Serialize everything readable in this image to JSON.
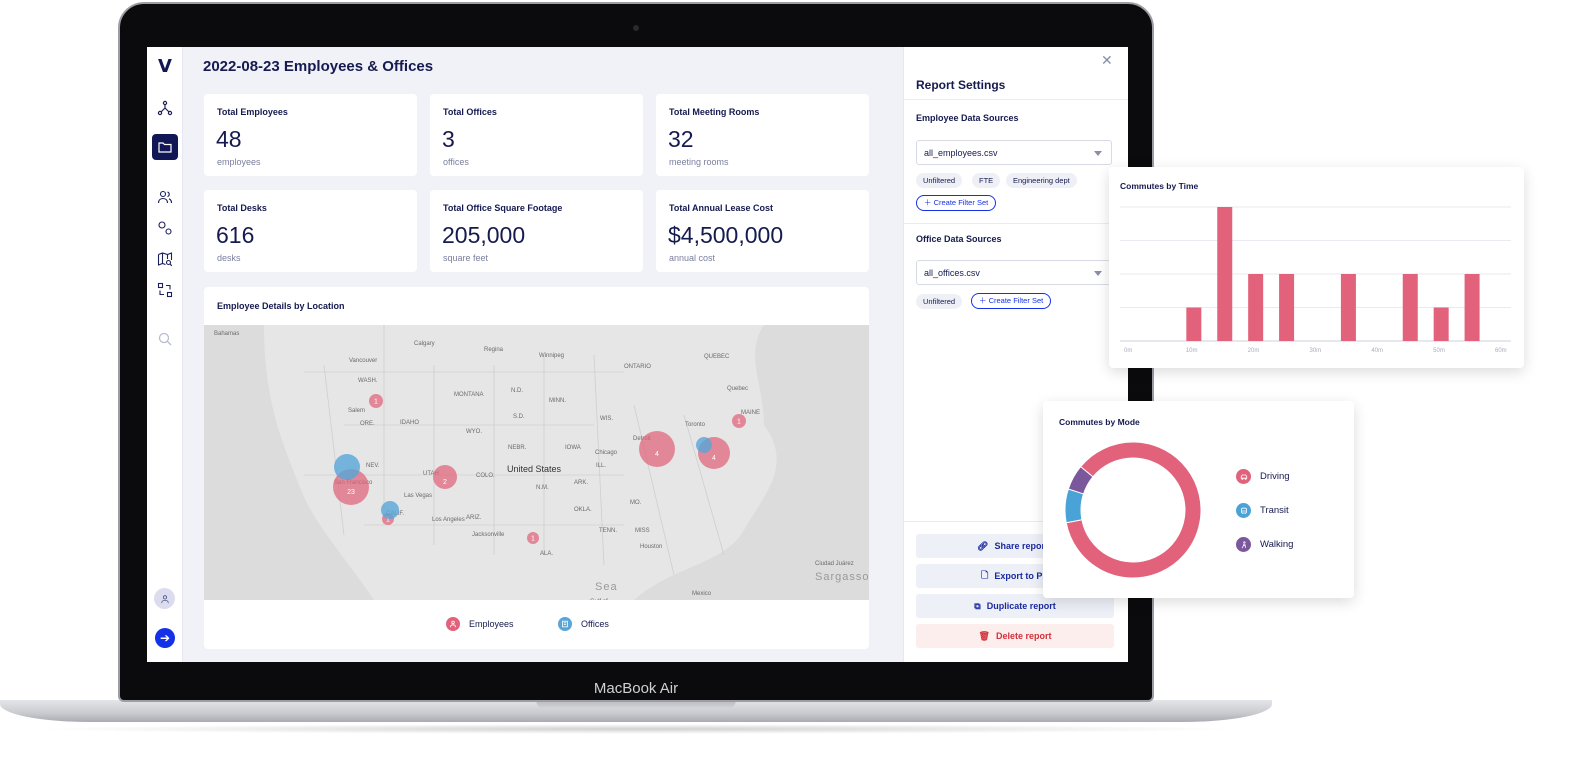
{
  "device_label": "MacBook Air",
  "page_title": "2022-08-23 Employees & Offices",
  "cards": [
    {
      "title": "Total Employees",
      "value": "48",
      "unit": "employees"
    },
    {
      "title": "Total Offices",
      "value": "3",
      "unit": "offices"
    },
    {
      "title": "Total Meeting Rooms",
      "value": "32",
      "unit": "meeting rooms"
    },
    {
      "title": "Total Desks",
      "value": "616",
      "unit": "desks"
    },
    {
      "title": "Total Office Square Footage",
      "value": "205,000",
      "unit": "square feet"
    },
    {
      "title": "Total Annual Lease Cost",
      "value": "$4,500,000",
      "unit": "annual cost"
    }
  ],
  "map": {
    "title": "Employee Details by Location",
    "country_label": "United States",
    "place_labels": [
      "Vancouver",
      "Calgary",
      "Regina",
      "Winnipeg",
      "WASH.",
      "Salem",
      "ORE.",
      "IDAHO",
      "MONTANA",
      "WYO.",
      "N.D.",
      "S.D.",
      "NEBR.",
      "MINN.",
      "IOWA",
      "ILL.",
      "WIS.",
      "ONTARIO",
      "QUEBEC",
      "Quebec",
      "Toronto",
      "MAINE",
      "Detroit",
      "Chicago",
      "NEV.",
      "UTAH",
      "COLO.",
      "San Francisco",
      "Las Vegas",
      "CALIF.",
      "Los Angeles",
      "ARIZ.",
      "N.M.",
      "OKLA.",
      "ARK.",
      "MO.",
      "TENN.",
      "MISS",
      "ALA.",
      "Houston",
      "Jacksonville",
      "Ciudad Juárez",
      "Sargasso",
      "Sea",
      "Gulf of",
      "Mexico",
      "Bahamas"
    ],
    "employee_clusters": [
      {
        "label": "1",
        "count": 1
      },
      {
        "label": "2",
        "count": 2
      },
      {
        "label": "4",
        "count": 4
      },
      {
        "label": "4",
        "count": 4
      },
      {
        "label": "23",
        "count": 23
      },
      {
        "label": "1",
        "count": 1
      },
      {
        "label": "1",
        "count": 1
      },
      {
        "label": "1",
        "count": 1
      }
    ],
    "office_markers": 3,
    "legend": [
      {
        "label": "Employees",
        "color": "#e1627a"
      },
      {
        "label": "Offices",
        "color": "#58a6d8"
      }
    ]
  },
  "panel": {
    "title": "Report Settings",
    "employee_section": "Employee Data Sources",
    "employee_source": "all_employees.csv",
    "employee_filters": [
      "Unfiltered",
      "FTE",
      "Engineering dept"
    ],
    "create_filter": "Create Filter Set",
    "office_section": "Office Data Sources",
    "office_source": "all_offices.csv",
    "office_filters": [
      "Unfiltered"
    ],
    "actions": {
      "share": "Share report l",
      "export": "Export to PD",
      "duplicate": "Duplicate report",
      "delete": "Delete report"
    }
  },
  "chart_data": [
    {
      "type": "bar",
      "title": "Commutes by Time",
      "x_tick_labels": [
        "0m",
        "10m",
        "20m",
        "30m",
        "40m",
        "50m",
        "60m"
      ],
      "x": [
        10,
        15,
        20,
        25,
        35,
        45,
        50,
        55
      ],
      "values": [
        1,
        4,
        2,
        2,
        2,
        2,
        1,
        2
      ],
      "color": "#e1627a",
      "grid": true
    },
    {
      "type": "pie",
      "title": "Commutes by Mode",
      "donut": true,
      "categories": [
        "Driving",
        "Transit",
        "Walking"
      ],
      "values": [
        0.86,
        0.08,
        0.06
      ],
      "colors": [
        "#e1627a",
        "#4aa3d6",
        "#7b579c"
      ],
      "legend": "right"
    }
  ]
}
